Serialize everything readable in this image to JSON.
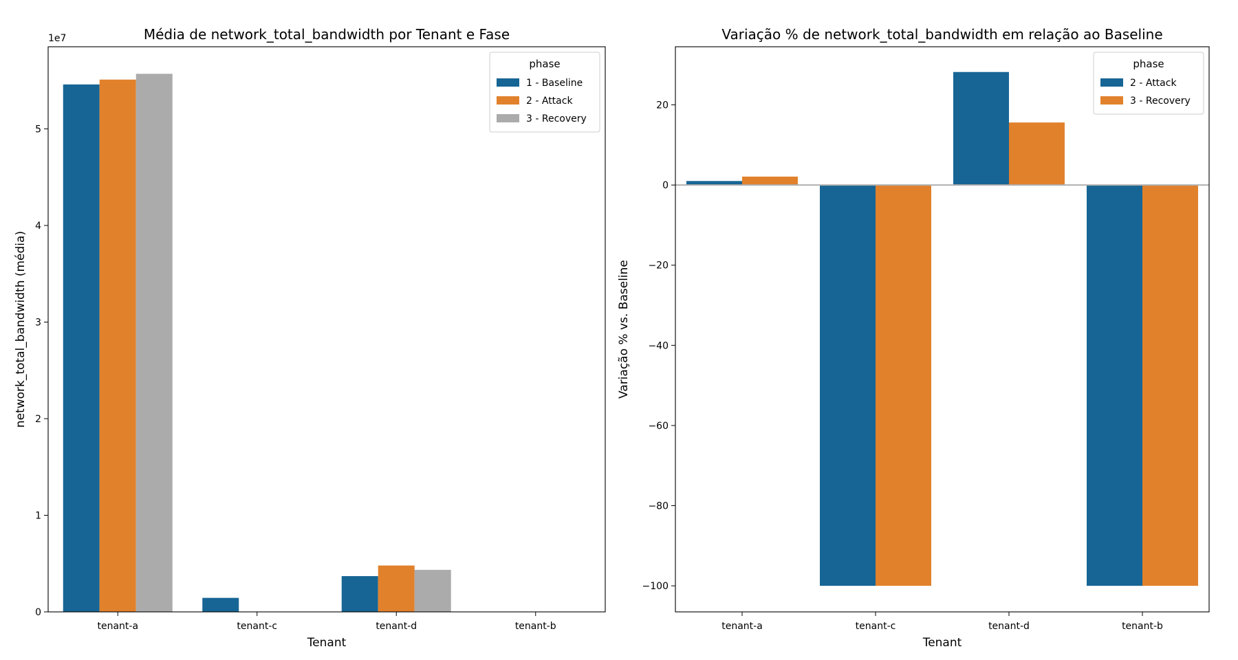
{
  "chart_data": [
    {
      "type": "bar",
      "title": "Média de network_total_bandwidth por Tenant e Fase",
      "xlabel": "Tenant",
      "ylabel": "network_total_bandwidth (média)",
      "offset_label": "1e7",
      "categories": [
        "tenant-a",
        "tenant-c",
        "tenant-d",
        "tenant-b"
      ],
      "ylim": [
        0,
        58500000
      ],
      "yticks": [
        0,
        10000000,
        20000000,
        30000000,
        40000000,
        50000000
      ],
      "ytick_labels": [
        "0",
        "1",
        "2",
        "3",
        "4",
        "5"
      ],
      "legend": {
        "title": "phase",
        "position": "top-right"
      },
      "series": [
        {
          "name": "1 - Baseline",
          "color": "#176595",
          "values": [
            54600000,
            1450000,
            3700000,
            0
          ]
        },
        {
          "name": "2 - Attack",
          "color": "#e1812c",
          "values": [
            55100000,
            0,
            4800000,
            0
          ]
        },
        {
          "name": "3 - Recovery",
          "color": "#ababab",
          "values": [
            55700000,
            0,
            4350000,
            0
          ]
        }
      ]
    },
    {
      "type": "bar",
      "title": "Variação % de network_total_bandwidth em relação ao Baseline",
      "xlabel": "Tenant",
      "ylabel": "Variação % vs. Baseline",
      "categories": [
        "tenant-a",
        "tenant-c",
        "tenant-d",
        "tenant-b"
      ],
      "ylim": [
        -106.5,
        34.5
      ],
      "yticks": [
        -100,
        -80,
        -60,
        -40,
        -20,
        0,
        20
      ],
      "ytick_labels": [
        "−100",
        "−80",
        "−60",
        "−40",
        "−20",
        "0",
        "20"
      ],
      "legend": {
        "title": "phase",
        "position": "top-right"
      },
      "zero_line": true,
      "series": [
        {
          "name": "2 - Attack",
          "color": "#176595",
          "values": [
            1.0,
            -100,
            28.2,
            -100
          ]
        },
        {
          "name": "3 - Recovery",
          "color": "#e1812c",
          "values": [
            2.1,
            -100,
            15.6,
            -100
          ]
        }
      ]
    }
  ]
}
